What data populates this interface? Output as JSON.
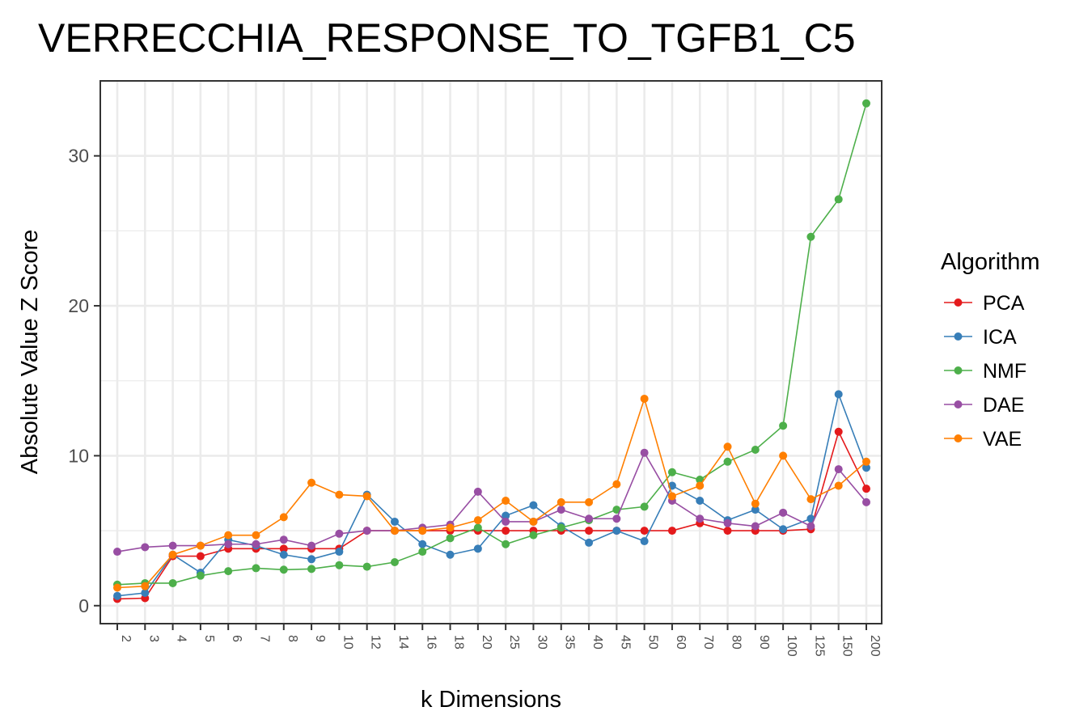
{
  "chart_data": {
    "type": "line",
    "title": "VERRECCHIA_RESPONSE_TO_TGFB1_C5",
    "xlabel": "k Dimensions",
    "ylabel": "Absolute Value Z Score",
    "x_axis_type": "categorical",
    "categories": [
      "2",
      "3",
      "4",
      "5",
      "6",
      "7",
      "8",
      "9",
      "10",
      "12",
      "14",
      "16",
      "18",
      "20",
      "25",
      "30",
      "35",
      "40",
      "45",
      "50",
      "60",
      "70",
      "80",
      "90",
      "100",
      "125",
      "150",
      "200"
    ],
    "ylim": [
      -1.2,
      35.0
    ],
    "yticks": [
      0,
      10,
      20,
      30
    ],
    "ytick_labels": [
      "0",
      "10",
      "20",
      "30"
    ],
    "grid": true,
    "legend": {
      "title": "Algorithm",
      "position": "right"
    },
    "series": [
      {
        "name": "PCA",
        "color": "#e41a1c",
        "values": [
          0.45,
          0.5,
          3.3,
          3.3,
          3.8,
          3.8,
          3.8,
          3.8,
          3.8,
          5.0,
          5.0,
          5.0,
          5.0,
          5.0,
          5.0,
          5.0,
          5.0,
          5.0,
          5.0,
          5.0,
          5.0,
          5.5,
          5.0,
          5.0,
          5.0,
          5.1,
          11.6,
          7.8
        ]
      },
      {
        "name": "ICA",
        "color": "#377eb8",
        "values": [
          0.65,
          0.85,
          3.4,
          2.2,
          4.4,
          4.0,
          3.4,
          3.1,
          3.6,
          7.4,
          5.6,
          4.1,
          3.4,
          3.8,
          6.0,
          6.7,
          5.3,
          4.2,
          5.0,
          4.3,
          8.0,
          7.0,
          5.7,
          6.4,
          5.1,
          5.8,
          14.1,
          9.2
        ]
      },
      {
        "name": "NMF",
        "color": "#4daf4a",
        "values": [
          1.4,
          1.5,
          1.5,
          2.0,
          2.3,
          2.5,
          2.4,
          2.45,
          2.7,
          2.6,
          2.9,
          3.6,
          4.5,
          5.2,
          4.1,
          4.7,
          5.2,
          5.7,
          6.4,
          6.6,
          8.9,
          8.4,
          9.6,
          10.4,
          12.0,
          24.6,
          27.1,
          33.5
        ]
      },
      {
        "name": "DAE",
        "color": "#984ea3",
        "values": [
          3.6,
          3.9,
          4.0,
          4.0,
          4.1,
          4.1,
          4.4,
          4.0,
          4.8,
          5.0,
          5.0,
          5.2,
          5.4,
          7.6,
          5.6,
          5.6,
          6.4,
          5.8,
          5.8,
          10.2,
          7.0,
          5.8,
          5.5,
          5.3,
          6.2,
          5.3,
          9.1,
          6.9
        ]
      },
      {
        "name": "VAE",
        "color": "#ff7f00",
        "values": [
          1.2,
          1.3,
          3.4,
          4.0,
          4.7,
          4.7,
          5.9,
          8.2,
          7.4,
          7.3,
          5.0,
          5.0,
          5.2,
          5.7,
          7.0,
          5.6,
          6.9,
          6.9,
          8.1,
          13.8,
          7.3,
          8.0,
          10.6,
          6.8,
          10.0,
          7.1,
          8.0,
          9.6
        ]
      }
    ]
  }
}
